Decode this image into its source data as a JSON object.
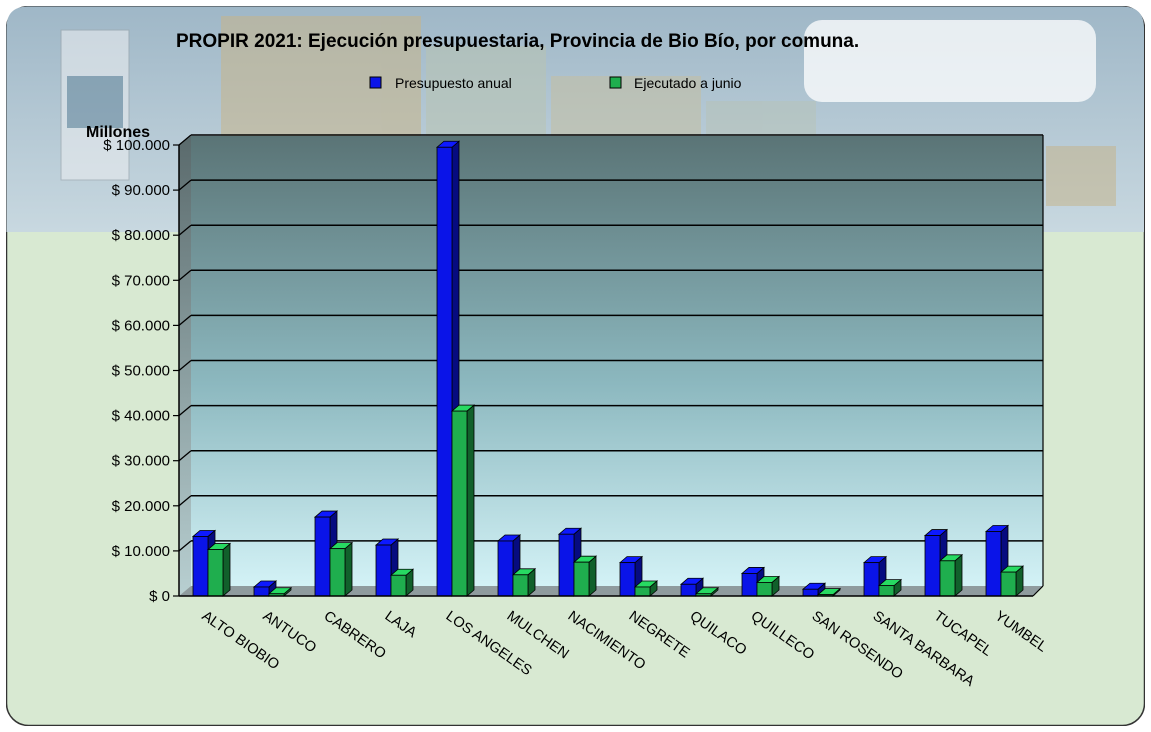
{
  "chart_data": {
    "type": "bar",
    "title": "PROPIR 2021: Ejecución presupuestaria, Provincia de Bio Bío, por comuna.",
    "ylabel": "Millones",
    "ylim": [
      0,
      100000
    ],
    "yticks": [
      0,
      10000,
      20000,
      30000,
      40000,
      50000,
      60000,
      70000,
      80000,
      90000,
      100000
    ],
    "ytick_labels": [
      "$ 0",
      "$ 10.000",
      "$ 20.000",
      "$ 30.000",
      "$ 40.000",
      "$ 50.000",
      "$ 60.000",
      "$ 70.000",
      "$ 80.000",
      "$ 90.000",
      "$ 100.000"
    ],
    "categories": [
      "ALTO BIOBIO",
      "ANTUCO",
      "CABRERO",
      "LAJA",
      "LOS ANGELES",
      "MULCHEN",
      "NACIMIENTO",
      "NEGRETE",
      "QUILACO",
      "QUILLECO",
      "SAN ROSENDO",
      "SANTA BARBARA",
      "TUCAPEL",
      "YUMBEL"
    ],
    "series": [
      {
        "name": "Presupuesto anual",
        "color": "#0a14e8",
        "values": [
          13200,
          2000,
          17500,
          11300,
          99500,
          12200,
          13700,
          7400,
          2600,
          5000,
          1500,
          7400,
          13400,
          14300
        ]
      },
      {
        "name": "Ejecutado a junio",
        "color": "#1fae4e",
        "values": [
          10300,
          500,
          10500,
          4600,
          41000,
          4700,
          7500,
          2000,
          500,
          3000,
          300,
          2300,
          7800,
          5300
        ]
      }
    ],
    "grid": true,
    "legend": "top-center"
  }
}
